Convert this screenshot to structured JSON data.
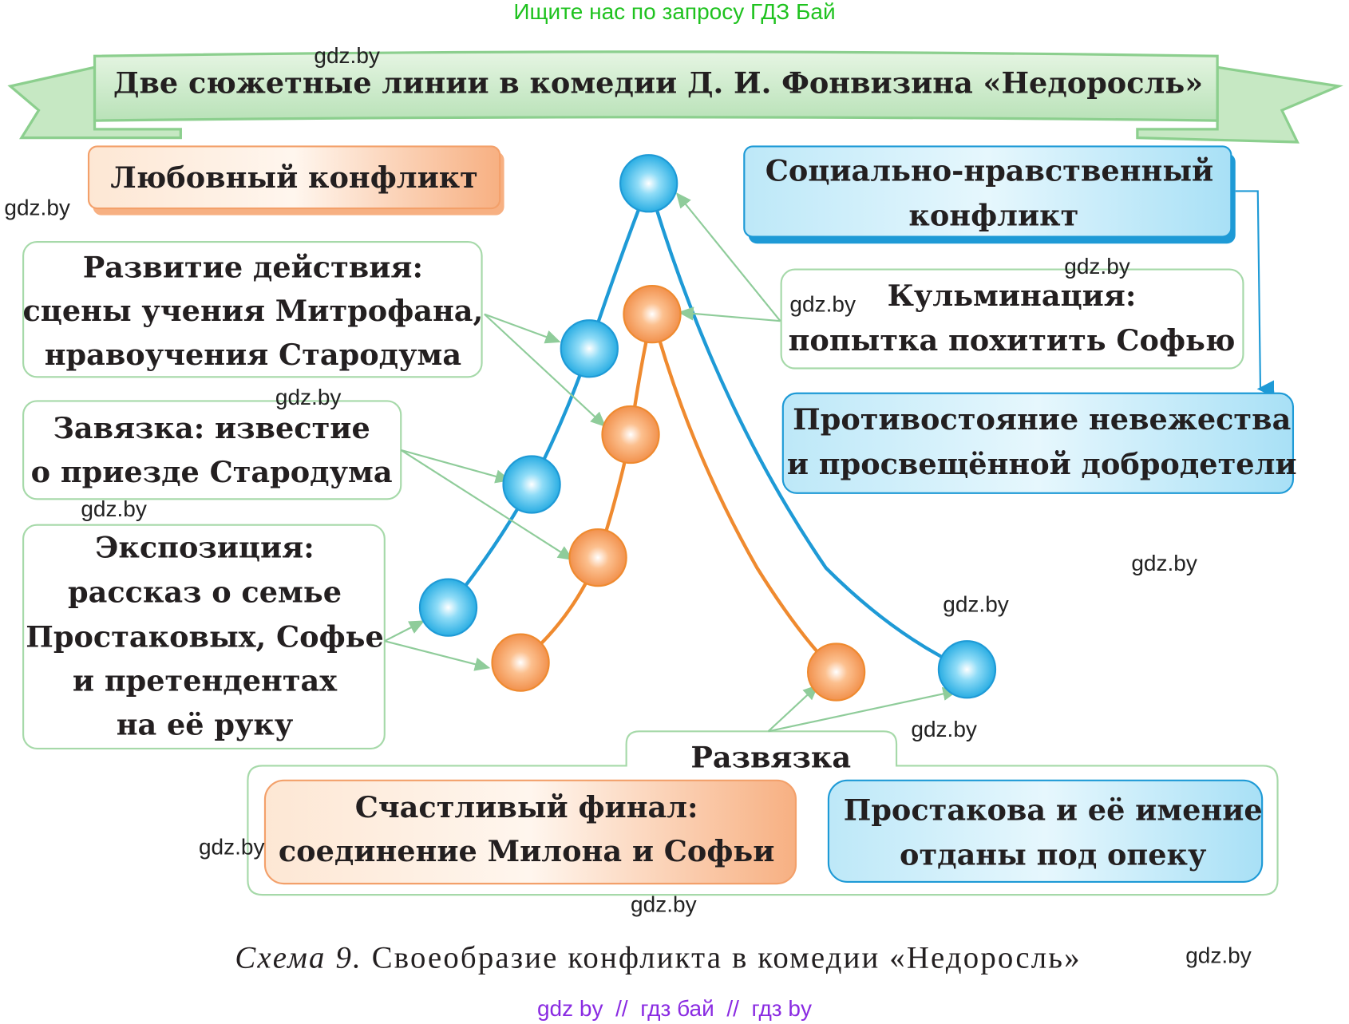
{
  "top_banner": "Ищите нас по запросу ГДЗ Бай",
  "title": "Две сюжетные линии в комедии Д. И. Фонвизина «Недоросль»",
  "love_conflict": "Любовный конфликт",
  "social_conflict": [
    "Социально-нравственный",
    "конфликт"
  ],
  "development": [
    "Развитие действия:",
    "сцены учения Митрофана,",
    "нравоучения Стародума"
  ],
  "exposition_start": [
    "Завязка: известие",
    "о приезде Стародума"
  ],
  "exposition": [
    "Экспозиция:",
    "рассказ о семье",
    "Простаковых, Софье",
    "и претендентах",
    "на её руку"
  ],
  "climax": [
    "Кульминация:",
    "попытка похитить Софью"
  ],
  "opposition": [
    "Противостояние невежества",
    "и просвещённой добродетели"
  ],
  "denouement": {
    "label": "Развязка",
    "happy": [
      "Счастливый финал:",
      "соединение Милона и Софьи"
    ],
    "prostakova": [
      "Простакова и её имение",
      "отданы под опеку"
    ]
  },
  "caption": {
    "italic": "Схема 9.",
    "text": " Своеобразие конфликта в комедии «Недоросль»"
  },
  "footer": "gdz by  //  гдз бай  //  гдз by",
  "watermark": "gdz.by",
  "colors": {
    "blue_line": "#1e9ad6",
    "orange_line": "#ef8a2f",
    "arrow": "#8fcc9a",
    "green_banner": "#1fc21f",
    "footer": "#8a2be2"
  }
}
